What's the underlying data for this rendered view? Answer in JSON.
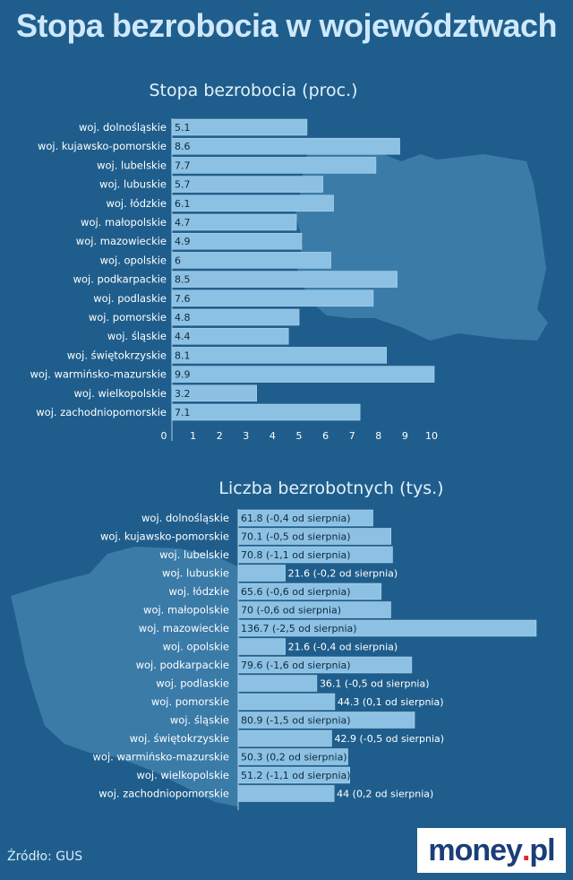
{
  "title": "Stopa bezrobocia w województwach",
  "source": "Źródło: GUS",
  "logo": {
    "left": "money",
    "dot": ".",
    "right": "pl"
  },
  "colors": {
    "background": "#1f5e8c",
    "bar": "#8cc1e3",
    "map": "#3f80ad",
    "title": "#cfe8fb"
  },
  "chart_data": [
    {
      "type": "bar",
      "orientation": "horizontal",
      "title": "Stopa bezrobocia (proc.)",
      "categories": [
        "woj. dolnośląskie",
        "woj. kujawsko-pomorskie",
        "woj. lubelskie",
        "woj. lubuskie",
        "woj. łódzkie",
        "woj. małopolskie",
        "woj. mazowieckie",
        "woj. opolskie",
        "woj. podkarpackie",
        "woj. podlaskie",
        "woj. pomorskie",
        "woj. śląskie",
        "woj. świętokrzyskie",
        "woj. warmińsko-mazurskie",
        "woj. wielkopolskie",
        "woj. zachodniopomorskie"
      ],
      "values": [
        5.1,
        8.6,
        7.7,
        5.7,
        6.1,
        4.7,
        4.9,
        6,
        8.5,
        7.6,
        4.8,
        4.4,
        8.1,
        9.9,
        3.2,
        7.1
      ],
      "labels": [
        "5.1",
        "8.6",
        "7.7",
        "5.7",
        "6.1",
        "4.7",
        "4.9",
        "6",
        "8.5",
        "7.6",
        "4.8",
        "4.4",
        "8.1",
        "9.9",
        "3.2",
        "7.1"
      ],
      "xticks": [
        "0",
        "1",
        "2",
        "3",
        "4",
        "5",
        "6",
        "7",
        "8",
        "9",
        "10"
      ],
      "xlim": [
        0,
        10
      ]
    },
    {
      "type": "bar",
      "orientation": "horizontal",
      "title": "Liczba bezrobotnych (tys.)",
      "categories": [
        "woj. dolnośląskie",
        "woj. kujawsko-pomorskie",
        "woj. lubelskie",
        "woj. lubuskie",
        "woj. łódzkie",
        "woj. małopolskie",
        "woj. mazowieckie",
        "woj. opolskie",
        "woj. podkarpackie",
        "woj. podlaskie",
        "woj. pomorskie",
        "woj. śląskie",
        "woj. świętokrzyskie",
        "woj. warmińsko-mazurskie",
        "woj. wielkopolskie",
        "woj. zachodniopomorskie"
      ],
      "values": [
        61.8,
        70.1,
        70.8,
        21.6,
        65.6,
        70,
        136.7,
        21.6,
        79.6,
        36.1,
        44.3,
        80.9,
        42.9,
        50.3,
        51.2,
        44
      ],
      "labels": [
        "61.8 (-0,4 od sierpnia)",
        "70.1 (-0,5 od sierpnia)",
        "70.8 (-1,1 od sierpnia)",
        "21.6 (-0,2 od sierpnia)",
        "65.6 (-0,6 od sierpnia)",
        "70 (-0,6 od sierpnia)",
        "136.7 (-2,5 od sierpnia)",
        "21.6 (-0,4 od sierpnia)",
        "79.6 (-1,6 od sierpnia)",
        "36.1 (-0,5 od sierpnia)",
        "44.3 (0,1 od sierpnia)",
        "80.9 (-1,5 od sierpnia)",
        "42.9 (-0,5 od sierpnia)",
        "50.3 (0,2 od sierpnia)",
        "51.2 (-1,1 od sierpnia)",
        "44 (0,2 od sierpnia)"
      ],
      "xlim": [
        0,
        136.7
      ]
    }
  ]
}
